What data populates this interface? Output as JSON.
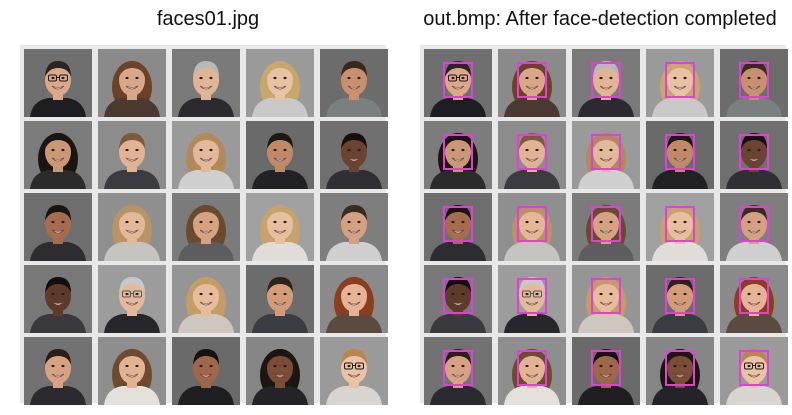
{
  "left_panel": {
    "title": "faces01.jpg"
  },
  "right_panel": {
    "title": "out.bmp: After face-detection completed"
  },
  "detection_box_color": "#e040d6",
  "portraits": [
    {
      "bg": "#6f6f6f",
      "skin": "#d9a98a",
      "hair": "#2a2520",
      "shirt": "#1e1e22",
      "glasses": true,
      "long_hair": false
    },
    {
      "bg": "#8a8a8a",
      "skin": "#d8a688",
      "hair": "#6b4128",
      "shirt": "#4a3a32",
      "glasses": false,
      "long_hair": true
    },
    {
      "bg": "#7a7a7a",
      "skin": "#e0b596",
      "hair": "#b8b8b8",
      "shirt": "#2a2a30",
      "glasses": false,
      "long_hair": false
    },
    {
      "bg": "#9a9a9a",
      "skin": "#e8c2a4",
      "hair": "#c9a66a",
      "shirt": "#c8c8c8",
      "glasses": false,
      "long_hair": true
    },
    {
      "bg": "#6c6c6c",
      "skin": "#c8906e",
      "hair": "#3a2a1e",
      "shirt": "#7a8080",
      "glasses": false,
      "long_hair": false
    },
    {
      "bg": "#7c7c7c",
      "skin": "#c99877",
      "hair": "#1b1512",
      "shirt": "#2b2b2b",
      "glasses": false,
      "long_hair": true
    },
    {
      "bg": "#8c8c8c",
      "skin": "#e0b394",
      "hair": "#7b5a3a",
      "shirt": "#3c3c40",
      "glasses": false,
      "long_hair": false
    },
    {
      "bg": "#9a9a9a",
      "skin": "#e2b89a",
      "hair": "#b08a5a",
      "shirt": "#d0cfcf",
      "glasses": false,
      "long_hair": true
    },
    {
      "bg": "#6a6a6a",
      "skin": "#c08a68",
      "hair": "#1c1814",
      "shirt": "#222226",
      "glasses": false,
      "long_hair": false
    },
    {
      "bg": "#707070",
      "skin": "#6b4332",
      "hair": "#15100d",
      "shirt": "#303034",
      "glasses": false,
      "long_hair": false
    },
    {
      "bg": "#6e6e6e",
      "skin": "#a56c4e",
      "hair": "#1a1410",
      "shirt": "#2d2d31",
      "glasses": false,
      "long_hair": false
    },
    {
      "bg": "#8f8f8f",
      "skin": "#e3b899",
      "hair": "#b89366",
      "shirt": "#c5c3c0",
      "glasses": false,
      "long_hair": true
    },
    {
      "bg": "#7b7b7b",
      "skin": "#d6a382",
      "hair": "#6a4a2e",
      "shirt": "#5d5d60",
      "glasses": false,
      "long_hair": true
    },
    {
      "bg": "#a0a0a0",
      "skin": "#e6bea0",
      "hair": "#c6a26c",
      "shirt": "#e0dcd8",
      "glasses": false,
      "long_hair": true
    },
    {
      "bg": "#7e7e7e",
      "skin": "#d3a182",
      "hair": "#3a2b20",
      "shirt": "#cfcfcf",
      "glasses": false,
      "long_hair": false
    },
    {
      "bg": "#787878",
      "skin": "#5e3a2a",
      "hair": "#120e0c",
      "shirt": "#3a3a3e",
      "glasses": false,
      "long_hair": false
    },
    {
      "bg": "#9c9c9c",
      "skin": "#e2b99c",
      "hair": "#c8c8c8",
      "shirt": "#26262b",
      "glasses": true,
      "long_hair": false
    },
    {
      "bg": "#959595",
      "skin": "#e6bc9c",
      "hair": "#c39c66",
      "shirt": "#cfc7bf",
      "glasses": false,
      "long_hair": true
    },
    {
      "bg": "#6c6c6c",
      "skin": "#d39c78",
      "hair": "#2e2119",
      "shirt": "#3a3e42",
      "glasses": false,
      "long_hair": false
    },
    {
      "bg": "#8a8a8a",
      "skin": "#e6b396",
      "hair": "#8a3e1e",
      "shirt": "#5a4a40",
      "glasses": false,
      "long_hair": true
    },
    {
      "bg": "#727272",
      "skin": "#d7a283",
      "hair": "#2a1e16",
      "shirt": "#2a2a30",
      "glasses": false,
      "long_hair": false
    },
    {
      "bg": "#8e8e8e",
      "skin": "#e2b393",
      "hair": "#6e4a30",
      "shirt": "#e4e0dc",
      "glasses": false,
      "long_hair": true
    },
    {
      "bg": "#6a6a6a",
      "skin": "#9e6749",
      "hair": "#15110e",
      "shirt": "#1f1f22",
      "glasses": false,
      "long_hair": false
    },
    {
      "bg": "#868686",
      "skin": "#7a4d38",
      "hair": "#1c1612",
      "shirt": "#242428",
      "glasses": false,
      "long_hair": true
    },
    {
      "bg": "#9a9a9a",
      "skin": "#eac3a6",
      "hair": "#b8874e",
      "shirt": "#d8d4d0",
      "glasses": true,
      "long_hair": false
    }
  ]
}
